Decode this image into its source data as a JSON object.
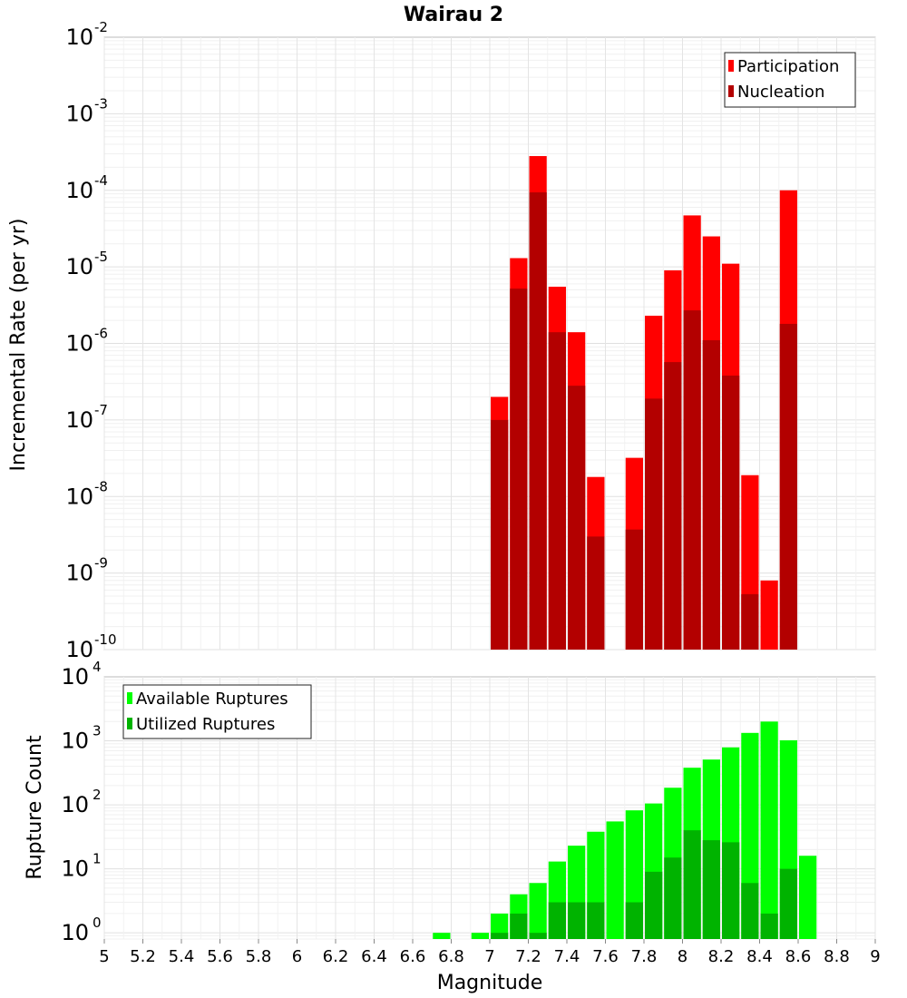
{
  "chart_data": [
    {
      "type": "bar",
      "title": "Wairau 2",
      "xlabel": "",
      "ylabel": "Incremental Rate (per yr)",
      "yscale": "log",
      "ylim": [
        1e-10,
        0.01
      ],
      "xlim": [
        5,
        9
      ],
      "grid": true,
      "legend_position": "top-right",
      "series": [
        {
          "name": "Participation",
          "color": "#ff0000",
          "x": [
            7.0,
            7.1,
            7.2,
            7.3,
            7.4,
            7.5,
            7.7,
            7.8,
            7.9,
            8.0,
            8.1,
            8.2,
            8.3,
            8.4,
            8.5
          ],
          "values": [
            2e-07,
            1.3e-05,
            0.00028,
            5.5e-06,
            1.4e-06,
            1.8e-08,
            3.2e-08,
            2.3e-06,
            9e-06,
            4.7e-05,
            2.5e-05,
            1.1e-05,
            1.9e-08,
            8e-10,
            0.0001
          ]
        },
        {
          "name": "Nucleation",
          "color": "#b30000",
          "x": [
            7.0,
            7.1,
            7.2,
            7.3,
            7.4,
            7.5,
            7.7,
            7.8,
            7.9,
            8.0,
            8.1,
            8.2,
            8.3,
            8.5
          ],
          "values": [
            1e-07,
            5.2e-06,
            9.4e-05,
            1.4e-06,
            2.8e-07,
            3e-09,
            3.7e-09,
            1.9e-07,
            5.7e-07,
            2.7e-06,
            1.1e-06,
            3.8e-07,
            5.3e-10,
            1.8e-06
          ]
        }
      ]
    },
    {
      "type": "bar",
      "title": "",
      "xlabel": "Magnitude",
      "ylabel": "Rupture Count",
      "yscale": "log",
      "ylim": [
        0.8,
        10000
      ],
      "xlim": [
        5,
        9
      ],
      "xticks": [
        "5",
        "5.2",
        "5.4",
        "5.6",
        "5.8",
        "6",
        "6.2",
        "6.4",
        "6.6",
        "6.8",
        "7",
        "7.2",
        "7.4",
        "7.6",
        "7.8",
        "8",
        "8.2",
        "8.4",
        "8.6",
        "8.8",
        "9"
      ],
      "grid": true,
      "legend_position": "top-left",
      "series": [
        {
          "name": "Available Ruptures",
          "color": "#00ff00",
          "x": [
            6.7,
            6.9,
            7.0,
            7.1,
            7.2,
            7.3,
            7.4,
            7.5,
            7.6,
            7.7,
            7.8,
            7.9,
            8.0,
            8.1,
            8.2,
            8.3,
            8.4,
            8.5,
            8.6
          ],
          "values": [
            1,
            1,
            2,
            4,
            6,
            13,
            23,
            38,
            55,
            82,
            105,
            185,
            380,
            510,
            790,
            1330,
            2000,
            1020,
            16
          ]
        },
        {
          "name": "Utilized Ruptures",
          "color": "#00b300",
          "x": [
            7.0,
            7.1,
            7.2,
            7.3,
            7.4,
            7.5,
            7.7,
            7.8,
            7.9,
            8.0,
            8.1,
            8.2,
            8.3,
            8.4,
            8.5
          ],
          "values": [
            1,
            2,
            1,
            3,
            3,
            3,
            3,
            9,
            15,
            40,
            28,
            26,
            6,
            2,
            10
          ]
        }
      ]
    }
  ]
}
